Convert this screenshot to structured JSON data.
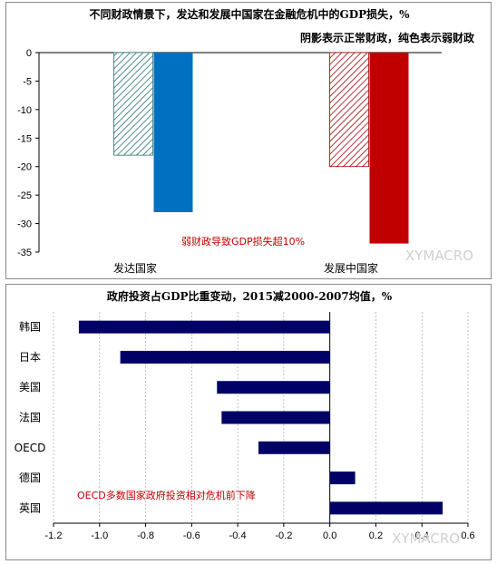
{
  "chart_data": [
    {
      "type": "bar",
      "title": "不同财政情景下，发达和发展中国家在金融危机中的GDP损失，%",
      "subtitle": "阴影表示正常财政，纯色表示弱财政",
      "categories": [
        "发达国家",
        "发展中国家"
      ],
      "series": [
        {
          "name": "正常财政",
          "pattern": "hatched",
          "values": [
            -18,
            -20
          ]
        },
        {
          "name": "弱财政",
          "pattern": "solid",
          "values": [
            -28,
            -33.5
          ]
        }
      ],
      "colors": {
        "developed": "#0070c0",
        "developing": "#c00000",
        "hatch_developed": "#2a6f73",
        "hatch_developing": "#a00000"
      },
      "yticks": [
        0,
        -5,
        -10,
        -15,
        -20,
        -25,
        -30,
        -35
      ],
      "ylim": [
        -35,
        0
      ],
      "annotation": "弱财政导致GDP损失超10%",
      "watermark": "XYMACRO"
    },
    {
      "type": "bar",
      "orientation": "horizontal",
      "title": "政府投资占GDP比重变动，2015减2000-2007均值，%",
      "categories": [
        "韩国",
        "日本",
        "美国",
        "法国",
        "OECD",
        "德国",
        "英国"
      ],
      "values": [
        -1.09,
        -0.91,
        -0.49,
        -0.47,
        -0.31,
        0.11,
        0.49
      ],
      "xticks": [
        "-1.2",
        "-1.0",
        "-0.8",
        "-0.6",
        "-0.4",
        "-0.2",
        "0.0",
        "0.2",
        "0.4",
        "0.6"
      ],
      "xlim": [
        -1.2,
        0.6
      ],
      "bar_color": "#000066",
      "annotation": "OECD多数国家政府投资相对危机前下降",
      "watermark": "XYMACRO"
    }
  ]
}
